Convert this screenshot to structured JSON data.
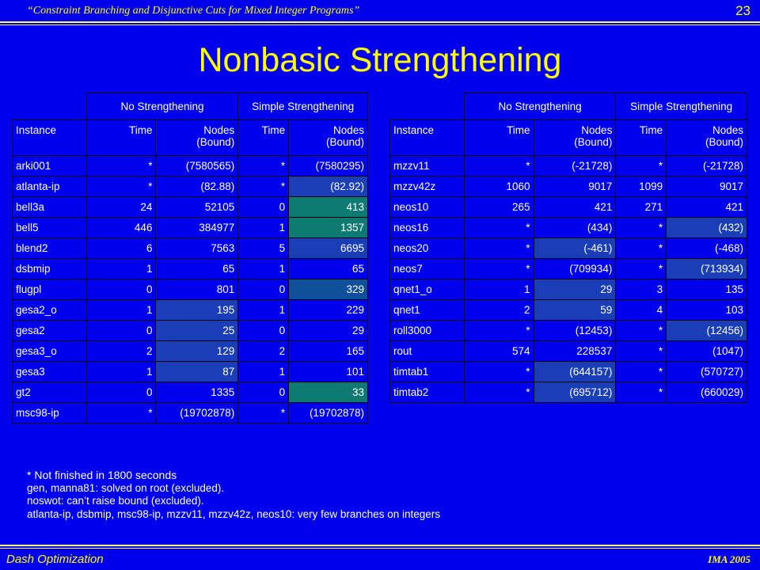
{
  "header": {
    "title": "“Constraint Branching and Disjunctive Cuts for Mixed Integer Programs”",
    "page": "23"
  },
  "slide_title": "Nonbasic Strengthening",
  "table_headers": {
    "group1": "No Strengthening",
    "group2": "Simple Strengthening",
    "instance": "Instance",
    "time": "Time",
    "nodes_line1": "Nodes",
    "nodes_line2": "(Bound)"
  },
  "left_table": [
    {
      "instance": "arki001",
      "t1": "*",
      "n1": "(7580565)",
      "t2": "*",
      "n2": "(7580295)",
      "bold": false,
      "shade1": "",
      "shade2": ""
    },
    {
      "instance": "atlanta-ip",
      "t1": "*",
      "n1": "(82.88)",
      "t2": "*",
      "n2": "(82.92)",
      "bold": false,
      "shade1": "",
      "shade2": "s1"
    },
    {
      "instance": "bell3a",
      "t1": "24",
      "n1": "52105",
      "t2": "0",
      "n2": "413",
      "bold": true,
      "shade1": "",
      "shade2": "s4"
    },
    {
      "instance": "bell5",
      "t1": "446",
      "n1": "384977",
      "t2": "1",
      "n2": "1357",
      "bold": true,
      "shade1": "",
      "shade2": "s4"
    },
    {
      "instance": "blend2",
      "t1": "6",
      "n1": "7563",
      "t2": "5",
      "n2": "6695",
      "bold": false,
      "shade1": "",
      "shade2": "s1"
    },
    {
      "instance": "dsbmip",
      "t1": "1",
      "n1": "65",
      "t2": "1",
      "n2": "65",
      "bold": false,
      "shade1": "",
      "shade2": ""
    },
    {
      "instance": "flugpl",
      "t1": "0",
      "n1": "801",
      "t2": "0",
      "n2": "329",
      "bold": false,
      "shade1": "",
      "shade2": "s2"
    },
    {
      "instance": "gesa2_o",
      "t1": "1",
      "n1": "195",
      "t2": "1",
      "n2": "229",
      "bold": false,
      "shade1": "s1",
      "shade2": ""
    },
    {
      "instance": "gesa2",
      "t1": "0",
      "n1": "25",
      "t2": "0",
      "n2": "29",
      "bold": false,
      "shade1": "s1",
      "shade2": ""
    },
    {
      "instance": "gesa3_o",
      "t1": "2",
      "n1": "129",
      "t2": "2",
      "n2": "165",
      "bold": false,
      "shade1": "s1",
      "shade2": ""
    },
    {
      "instance": "gesa3",
      "t1": "1",
      "n1": "87",
      "t2": "1",
      "n2": "101",
      "bold": false,
      "shade1": "s1",
      "shade2": ""
    },
    {
      "instance": "gt2",
      "t1": "0",
      "n1": "1335",
      "t2": "0",
      "n2": "33",
      "bold": true,
      "shade1": "",
      "shade2": "s4"
    },
    {
      "instance": "msc98-ip",
      "t1": "*",
      "n1": "(19702878)",
      "t2": "*",
      "n2": "(19702878)",
      "bold": false,
      "shade1": "",
      "shade2": ""
    }
  ],
  "right_table": [
    {
      "instance": "mzzv11",
      "t1": "*",
      "n1": "(-21728)",
      "t2": "*",
      "n2": "(-21728)",
      "shade1": "",
      "shade2": ""
    },
    {
      "instance": "mzzv42z",
      "t1": "1060",
      "n1": "9017",
      "t2": "1099",
      "n2": "9017",
      "shade1": "",
      "shade2": ""
    },
    {
      "instance": "neos10",
      "t1": "265",
      "n1": "421",
      "t2": "271",
      "n2": "421",
      "shade1": "",
      "shade2": ""
    },
    {
      "instance": "neos16",
      "t1": "*",
      "n1": "(434)",
      "t2": "*",
      "n2": "(432)",
      "shade1": "",
      "shade2": "s1"
    },
    {
      "instance": "neos20",
      "t1": "*",
      "n1": "(-461)",
      "t2": "*",
      "n2": "(-468)",
      "shade1": "s1",
      "shade2": ""
    },
    {
      "instance": "neos7",
      "t1": "*",
      "n1": "(709934)",
      "t2": "*",
      "n2": "(713934)",
      "shade1": "",
      "shade2": "s1"
    },
    {
      "instance": "qnet1_o",
      "t1": "1",
      "n1": "29",
      "t2": "3",
      "n2": "135",
      "shade1": "s1",
      "shade2": ""
    },
    {
      "instance": "qnet1",
      "t1": "2",
      "n1": "59",
      "t2": "4",
      "n2": "103",
      "shade1": "s1",
      "shade2": ""
    },
    {
      "instance": "roll3000",
      "t1": "*",
      "n1": "(12453)",
      "t2": "*",
      "n2": "(12456)",
      "shade1": "",
      "shade2": "s1"
    },
    {
      "instance": "rout",
      "t1": "574",
      "n1": "228537",
      "t2": "*",
      "n2": "(1047)",
      "shade1": "",
      "shade2": ""
    },
    {
      "instance": "timtab1",
      "t1": "*",
      "n1": "(644157)",
      "t2": "*",
      "n2": "(570727)",
      "shade1": "s1",
      "shade2": ""
    },
    {
      "instance": "timtab2",
      "t1": "*",
      "n1": "(695712)",
      "t2": "*",
      "n2": "(660029)",
      "shade1": "s1",
      "shade2": ""
    }
  ],
  "notes": [
    "* Not finished in 1800 seconds",
    "gen, manna81: solved on root (excluded).",
    "noswot: can’t raise bound (excluded).",
    "atlanta-ip, dsbmip, msc98-ip, mzzv11, mzzv42z, neos10: very few branches on integers"
  ],
  "footer": {
    "left": "Dash Optimization",
    "right": "IMA 2005"
  },
  "colors": {
    "background": "#0000ee",
    "title": "#ffff00",
    "shade_light": "#1a3eb8",
    "shade_teal": "#0f7a72"
  }
}
